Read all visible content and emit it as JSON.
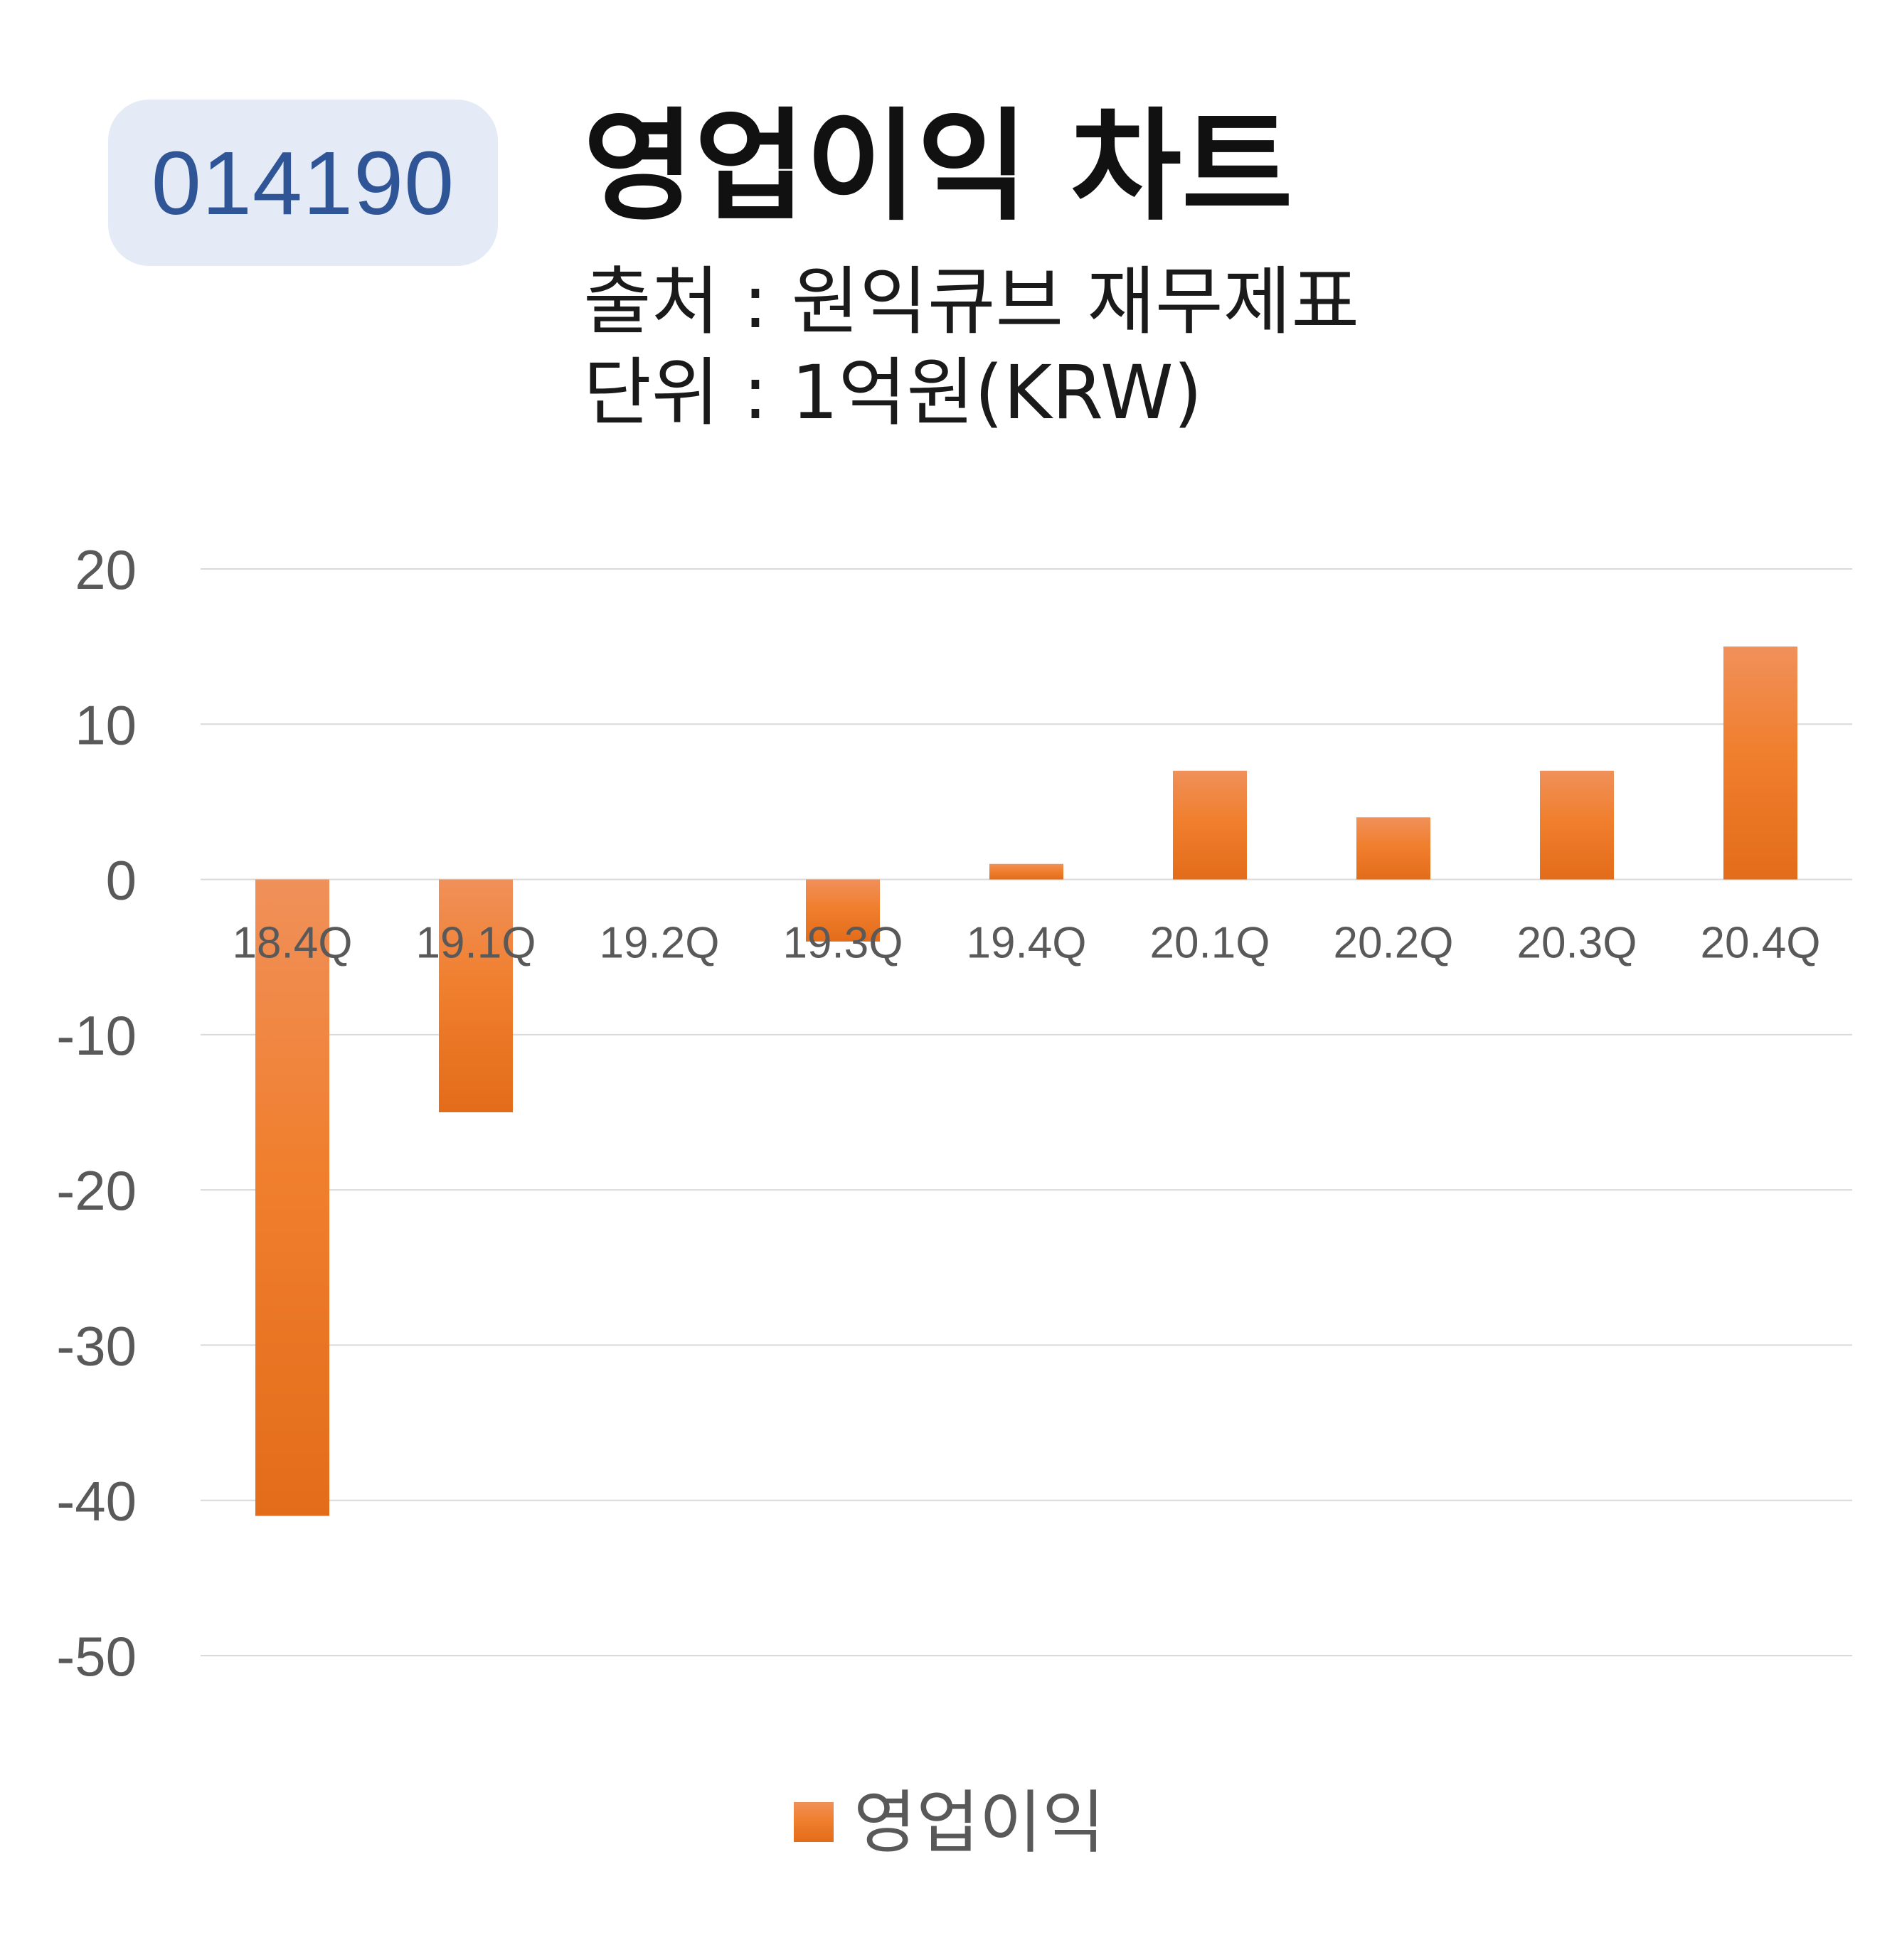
{
  "badge": {
    "code": "014190"
  },
  "header": {
    "title": "영업이익 차트",
    "source": "출처 : 원익큐브 재무제표",
    "unit": "단위 : 1억원(KRW)"
  },
  "colors": {
    "bar_top": "#f0905a",
    "bar_mid": "#f07f2e",
    "bar_bottom": "#e36c1a",
    "grid": "#d9d9d9",
    "tick": "#595959"
  },
  "chart_data": {
    "type": "bar",
    "categories": [
      "18.4Q",
      "19.1Q",
      "19.2Q",
      "19.3Q",
      "19.4Q",
      "20.1Q",
      "20.2Q",
      "20.3Q",
      "20.4Q"
    ],
    "series": [
      {
        "name": "영업이익",
        "values": [
          -41,
          -15,
          0,
          -4,
          1,
          7,
          4,
          7,
          15
        ]
      }
    ],
    "yticks": [
      20,
      10,
      0,
      -10,
      -20,
      -30,
      -40,
      -50
    ],
    "ylim": [
      -50,
      20
    ],
    "grid": true,
    "legend": "bottom",
    "xlabel": "",
    "ylabel": ""
  }
}
